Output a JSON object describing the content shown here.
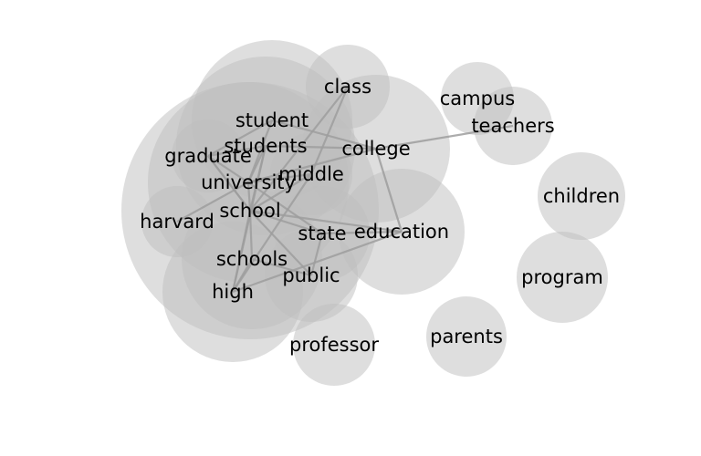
{
  "nodes": [
    {
      "id": "class",
      "label": "class"
    },
    {
      "id": "campus",
      "label": "campus"
    },
    {
      "id": "teachers",
      "label": "teachers"
    },
    {
      "id": "student",
      "label": "student"
    },
    {
      "id": "college",
      "label": "college"
    },
    {
      "id": "students",
      "label": "students"
    },
    {
      "id": "graduate",
      "label": "graduate"
    },
    {
      "id": "middle",
      "label": "middle"
    },
    {
      "id": "university",
      "label": "university"
    },
    {
      "id": "children",
      "label": "children"
    },
    {
      "id": "school",
      "label": "school"
    },
    {
      "id": "harvard",
      "label": "harvard"
    },
    {
      "id": "state",
      "label": "state"
    },
    {
      "id": "education",
      "label": "education"
    },
    {
      "id": "schools",
      "label": "schools"
    },
    {
      "id": "public",
      "label": "public"
    },
    {
      "id": "program",
      "label": "program"
    },
    {
      "id": "high",
      "label": "high"
    },
    {
      "id": "parents",
      "label": "parents"
    },
    {
      "id": "professor",
      "label": "professor"
    }
  ],
  "edges": [
    [
      "university",
      "college"
    ],
    [
      "university",
      "student"
    ],
    [
      "university",
      "students"
    ],
    [
      "university",
      "school"
    ],
    [
      "university",
      "graduate"
    ],
    [
      "university",
      "harvard"
    ],
    [
      "university",
      "middle"
    ],
    [
      "university",
      "state"
    ],
    [
      "school",
      "high"
    ],
    [
      "school",
      "schools"
    ],
    [
      "school",
      "middle"
    ],
    [
      "school",
      "public"
    ],
    [
      "school",
      "students"
    ],
    [
      "school",
      "state"
    ],
    [
      "school",
      "graduate"
    ],
    [
      "school",
      "education"
    ],
    [
      "students",
      "college"
    ],
    [
      "students",
      "graduate"
    ],
    [
      "students",
      "high"
    ],
    [
      "student",
      "college"
    ],
    [
      "student",
      "graduate"
    ],
    [
      "class",
      "middle"
    ],
    [
      "class",
      "school"
    ],
    [
      "college",
      "teachers"
    ],
    [
      "college",
      "education"
    ],
    [
      "education",
      "high"
    ],
    [
      "education",
      "state"
    ],
    [
      "public",
      "state"
    ],
    [
      "public",
      "schools"
    ],
    [
      "high",
      "schools"
    ],
    [
      "middle",
      "high"
    ],
    [
      "graduate",
      "school"
    ]
  ]
}
